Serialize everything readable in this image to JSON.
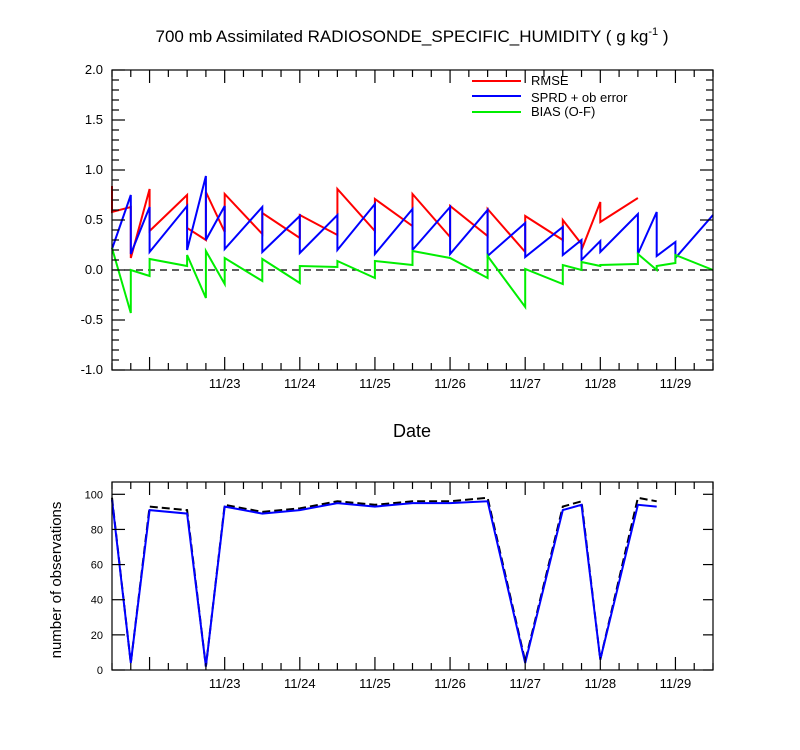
{
  "chart_data": [
    {
      "type": "line",
      "title": "700 mb Assimilated RADIOSONDE_SPECIFIC_HUMIDITY ( g kg",
      "title_units_exponent": "-1",
      "title_close": " )",
      "xlabel": "Date",
      "ylabel": "",
      "x_ticks": [
        "11/23",
        "11/24",
        "11/25",
        "11/26",
        "11/27",
        "11/28",
        "11/29"
      ],
      "x_tick_positions_days": [
        1,
        2,
        3,
        4,
        5,
        6,
        7
      ],
      "x_range_days": [
        -0.5,
        7.5
      ],
      "x_axis_note": "days since 11/22 00Z",
      "ylim": [
        -1.0,
        2.0
      ],
      "y_ticks": [
        "-1.0",
        "-0.5",
        "0.0",
        "0.5",
        "1.0",
        "1.5",
        "2.0"
      ],
      "y_tick_values": [
        -1.0,
        -0.5,
        0.0,
        0.5,
        1.0,
        1.5,
        2.0
      ],
      "zero_line": "dashed",
      "legend": {
        "placement": "top-right"
      },
      "series": [
        {
          "name": "RMSE",
          "color": "#ff0000",
          "x": [
            -0.5,
            -0.5,
            -0.25,
            -0.25,
            0,
            0,
            0.5,
            0.5,
            0.75,
            0.75,
            1,
            1,
            1.5,
            1.5,
            2,
            2,
            2.5,
            2.5,
            3,
            3,
            3.5,
            3.5,
            4,
            4,
            4.5,
            4.5,
            5,
            5,
            5.5,
            5.5,
            5.75,
            5.75,
            6,
            6,
            6.5,
            6.5,
            6.75,
            6.75,
            7,
            7,
            7.5
          ],
          "y": [
            0.84,
            0.58,
            0.63,
            0.12,
            0.81,
            0.39,
            0.75,
            0.42,
            0.3,
            0.78,
            0.38,
            0.76,
            0.36,
            0.57,
            0.32,
            0.55,
            0.35,
            0.81,
            0.39,
            0.71,
            0.44,
            0.76,
            0.33,
            0.64,
            0.34,
            0.61,
            0.18,
            0.54,
            0.3,
            0.5,
            0.26,
            0.2,
            0.68,
            0.48,
            0.72,
            null,
            null,
            null,
            null,
            null,
            null
          ]
        },
        {
          "name": "SPRD + ob error",
          "color": "#0000ff",
          "x": [
            -0.5,
            -0.25,
            -0.25,
            0,
            0,
            0.5,
            0.5,
            0.75,
            0.75,
            1,
            1,
            1.5,
            1.5,
            2,
            2,
            2.5,
            2.5,
            3,
            3,
            3.5,
            3.5,
            4,
            4,
            4.5,
            4.5,
            5,
            5,
            5.5,
            5.5,
            5.75,
            5.75,
            6,
            6,
            6.5,
            6.5,
            6.75,
            6.75,
            7,
            7,
            7.5
          ],
          "y": [
            0.21,
            0.75,
            0.16,
            0.63,
            0.18,
            0.64,
            0.2,
            0.94,
            0.3,
            0.64,
            0.21,
            0.63,
            0.18,
            0.54,
            0.17,
            0.55,
            0.2,
            0.66,
            0.16,
            0.61,
            0.2,
            0.63,
            0.16,
            0.6,
            0.14,
            0.47,
            0.13,
            0.43,
            0.15,
            0.3,
            0.1,
            0.29,
            0.18,
            0.56,
            0.16,
            0.58,
            0.14,
            0.28,
            0.12,
            0.55
          ]
        },
        {
          "name": "BIAS (O-F)",
          "color": "#00ee00",
          "x": [
            -0.5,
            -0.25,
            -0.25,
            0,
            0,
            0.5,
            0.5,
            0.75,
            0.75,
            1,
            1,
            1.5,
            1.5,
            2,
            2,
            2.5,
            2.5,
            3,
            3,
            3.5,
            3.5,
            4,
            4,
            4.5,
            4.5,
            5,
            5,
            5.5,
            5.5,
            5.75,
            5.75,
            6,
            6,
            6.5,
            6.5,
            6.75,
            6.75,
            7,
            7,
            7.5
          ],
          "y": [
            0.22,
            -0.43,
            0.0,
            -0.06,
            0.11,
            0.04,
            0.15,
            -0.28,
            0.19,
            -0.14,
            0.12,
            -0.11,
            0.11,
            -0.13,
            0.04,
            0.03,
            0.09,
            -0.08,
            0.09,
            0.05,
            0.19,
            0.12,
            0.12,
            -0.08,
            0.14,
            -0.37,
            0.01,
            -0.14,
            0.05,
            0.0,
            0.08,
            0.04,
            0.05,
            0.06,
            0.16,
            0.0,
            0.04,
            0.07,
            0.15,
            0.0
          ]
        }
      ]
    },
    {
      "type": "line",
      "title": "",
      "xlabel": "",
      "ylabel": "number of observations",
      "x_ticks": [
        "11/23",
        "11/24",
        "11/25",
        "11/26",
        "11/27",
        "11/28",
        "11/29"
      ],
      "x_tick_positions_days": [
        1,
        2,
        3,
        4,
        5,
        6,
        7
      ],
      "x_range_days": [
        -0.5,
        7.5
      ],
      "ylim": [
        0,
        107
      ],
      "y_ticks": [
        "0",
        "20",
        "40",
        "60",
        "80",
        "100"
      ],
      "y_tick_values": [
        0,
        20,
        40,
        60,
        80,
        100
      ],
      "series": [
        {
          "name": "",
          "color": "#000000",
          "style": "dashed",
          "x": [
            -0.5,
            -0.25,
            0,
            0.5,
            0.75,
            1,
            1.5,
            2,
            2.5,
            3,
            3.5,
            4,
            4.5,
            5,
            5.5,
            5.75,
            6,
            6.5,
            6.75,
            7,
            7.5
          ],
          "y": [
            98,
            4,
            93,
            91,
            2,
            94,
            90,
            92,
            96,
            94,
            96,
            96,
            98,
            5,
            93,
            96,
            6,
            98,
            96,
            null,
            null
          ]
        },
        {
          "name": "",
          "color": "#0000ff",
          "style": "solid",
          "x": [
            -0.5,
            -0.25,
            0,
            0.5,
            0.75,
            1,
            1.5,
            2,
            2.5,
            3,
            3.5,
            4,
            4.5,
            5,
            5.5,
            5.75,
            6,
            6.5,
            6.75,
            7,
            7.5
          ],
          "y": [
            97,
            4,
            91,
            89,
            2,
            93,
            89,
            91,
            95,
            93,
            95,
            95,
            96,
            4,
            91,
            94,
            6,
            94,
            93,
            null,
            null
          ]
        }
      ]
    }
  ]
}
